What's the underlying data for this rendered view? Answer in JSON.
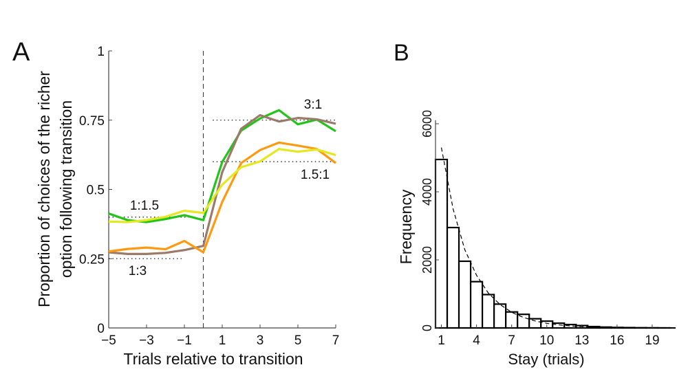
{
  "chart_data": [
    {
      "panel_label": "A",
      "type": "line",
      "xlabel": "Trials relative to transition",
      "ylabel": [
        "Proportion of choices of the richer",
        "option following transition"
      ],
      "xlim": [
        -5,
        7
      ],
      "ylim": [
        0,
        1
      ],
      "xticks": [
        -5,
        -3,
        -1,
        1,
        3,
        5,
        7
      ],
      "xtick_labels": [
        "−5",
        "−3",
        "−1",
        "1",
        "3",
        "5",
        "7"
      ],
      "yticks": [
        0,
        0.25,
        0.5,
        0.75,
        1
      ],
      "ytick_labels": [
        "0",
        "0.25",
        "0.5",
        "0.75",
        "1"
      ],
      "grid": false,
      "x": [
        -5,
        -4,
        -3,
        -2,
        -1,
        0,
        1,
        2,
        3,
        4,
        5,
        6,
        7
      ],
      "series": [
        {
          "color": "#22c41a",
          "values": [
            0.413,
            0.389,
            0.382,
            0.393,
            0.407,
            0.389,
            0.599,
            0.712,
            0.756,
            0.786,
            0.735,
            0.752,
            0.71
          ]
        },
        {
          "color": "#9b7a6a",
          "values": [
            0.273,
            0.267,
            0.267,
            0.271,
            0.281,
            0.296,
            0.562,
            0.719,
            0.768,
            0.745,
            0.758,
            0.753,
            0.737
          ]
        },
        {
          "color": "#ff9a10",
          "values": [
            0.276,
            0.285,
            0.29,
            0.284,
            0.314,
            0.273,
            0.455,
            0.595,
            0.642,
            0.669,
            0.658,
            0.646,
            0.595
          ]
        },
        {
          "color": "#e4e820",
          "values": [
            0.384,
            0.382,
            0.389,
            0.401,
            0.423,
            0.415,
            0.517,
            0.58,
            0.601,
            0.646,
            0.636,
            0.644,
            0.624
          ]
        }
      ],
      "reference_lines": [
        {
          "y": 0.75,
          "x_range": [
            0.5,
            7
          ],
          "label": "3:1"
        },
        {
          "y": 0.6,
          "x_range": [
            0.5,
            7
          ],
          "label": "1.5:1"
        },
        {
          "y": 0.4,
          "x_range": [
            -5,
            -0.5
          ],
          "label": "1:1.5"
        },
        {
          "y": 0.25,
          "x_range": [
            -5,
            -1
          ],
          "label": "1:3"
        }
      ],
      "transition_line_x": 0
    },
    {
      "panel_label": "B",
      "type": "bar",
      "xlabel": "Stay (trials)",
      "ylabel": "Frequency",
      "xlim": [
        0.5,
        21
      ],
      "ylim": [
        0,
        6000
      ],
      "xticks": [
        1,
        4,
        7,
        10,
        13,
        16,
        19
      ],
      "yticks": [
        0,
        2000,
        4000,
        6000
      ],
      "grid": false,
      "categories": [
        1,
        2,
        3,
        4,
        5,
        6,
        7,
        8,
        9,
        10,
        11,
        12,
        13,
        14,
        15,
        16,
        17,
        18,
        19,
        20
      ],
      "values": [
        4950,
        2950,
        1960,
        1360,
        980,
        700,
        470,
        400,
        270,
        200,
        140,
        100,
        70,
        40,
        25,
        15,
        10,
        6,
        4,
        2
      ],
      "fit": {
        "style": "dashed",
        "x": [
          1,
          2,
          3,
          4,
          5,
          6,
          7,
          8,
          9,
          10,
          11,
          12,
          13,
          14,
          16,
          18,
          20
        ],
        "values": [
          5300,
          3500,
          2300,
          1550,
          1030,
          690,
          460,
          310,
          205,
          135,
          90,
          60,
          40,
          27,
          12,
          5,
          2
        ]
      }
    }
  ]
}
